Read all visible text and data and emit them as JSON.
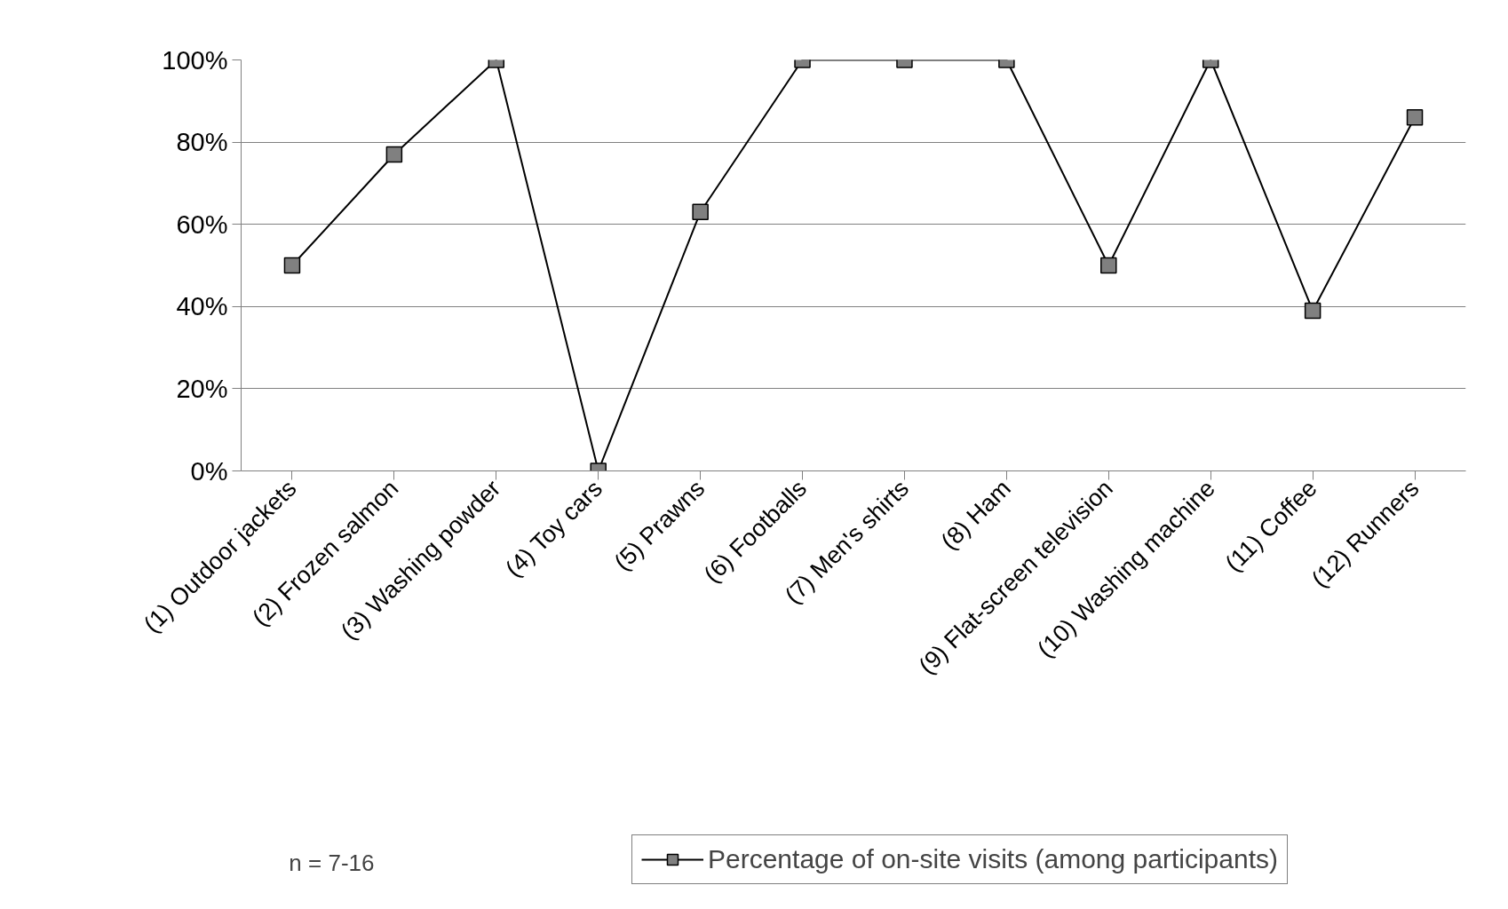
{
  "chart_data": {
    "type": "line",
    "categories": [
      "(1) Outdoor jackets",
      "(2) Frozen salmon",
      "(3) Washing powder",
      "(4) Toy cars",
      "(5) Prawns",
      "(6) Footballs",
      "(7) Men's shirts",
      "(8) Ham",
      "(9) Flat-screen television",
      "(10) Washing machine",
      "(11) Coffee",
      "(12) Runners"
    ],
    "series": [
      {
        "name": "Percentage of on-site visits (among participants)",
        "color": "#808080",
        "values": [
          50,
          77,
          100,
          0,
          63,
          100,
          100,
          100,
          50,
          100,
          39,
          86
        ]
      }
    ],
    "ylim": [
      0,
      100
    ],
    "yticks": [
      {
        "value": 0,
        "label": "0%"
      },
      {
        "value": 20,
        "label": "20%"
      },
      {
        "value": 40,
        "label": "40%"
      },
      {
        "value": 60,
        "label": "60%"
      },
      {
        "value": 80,
        "label": "80%"
      },
      {
        "value": 100,
        "label": "100%"
      }
    ],
    "grid": "y",
    "legend": "bottom",
    "marker": "square",
    "line_style": "solid",
    "annotations": [
      "n = 7-16"
    ]
  }
}
